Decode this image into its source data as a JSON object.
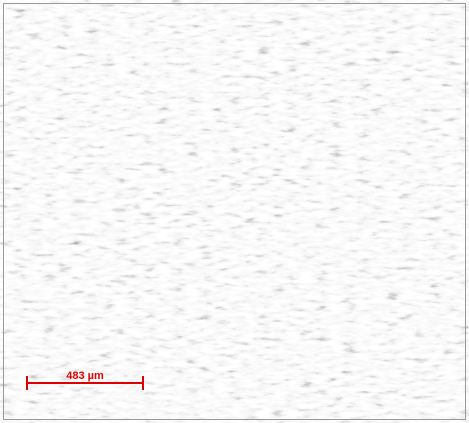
{
  "scale_bar": {
    "label": "483 µm"
  }
}
